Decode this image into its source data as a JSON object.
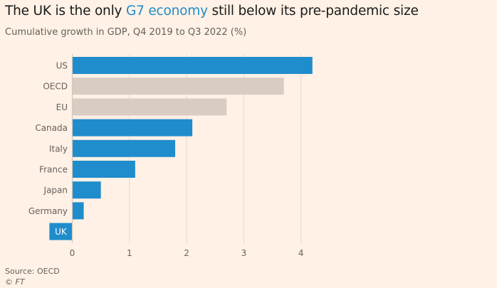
{
  "header": {
    "title_before": "The UK is the only ",
    "title_highlight": "G7 economy",
    "title_after": " still below its pre-pandemic size",
    "subtitle": "Cumulative growth in GDP, Q4 2019 to Q3 2022 (%)"
  },
  "footer": {
    "source": "Source: OECD",
    "copyright": "© FT"
  },
  "colors": {
    "g7": "#1f8ccc",
    "aggregate": "#d9cdc3",
    "highlight_text": "#1f8ccc",
    "gridline": "#e6d9ce",
    "label_text": "#66605c"
  },
  "chart_data": {
    "type": "bar",
    "orientation": "horizontal",
    "title": "The UK is the only G7 economy still below its pre-pandemic size",
    "subtitle": "Cumulative growth in GDP, Q4 2019 to Q3 2022 (%)",
    "xlabel": "",
    "ylabel": "",
    "categories": [
      "US",
      "OECD",
      "EU",
      "Canada",
      "Italy",
      "France",
      "Japan",
      "Germany",
      "UK"
    ],
    "values": [
      4.2,
      3.7,
      2.7,
      2.1,
      1.8,
      1.1,
      0.5,
      0.2,
      -0.4
    ],
    "groups": [
      "G7",
      "Aggregate",
      "Aggregate",
      "G7",
      "G7",
      "G7",
      "G7",
      "G7",
      "G7"
    ],
    "label_inside_bar": [
      "UK"
    ],
    "xlim": [
      -0.4,
      4.5
    ],
    "xticks": [
      0,
      1,
      2,
      3,
      4
    ],
    "grid": true,
    "legend": "none",
    "source": "Source: OECD"
  }
}
